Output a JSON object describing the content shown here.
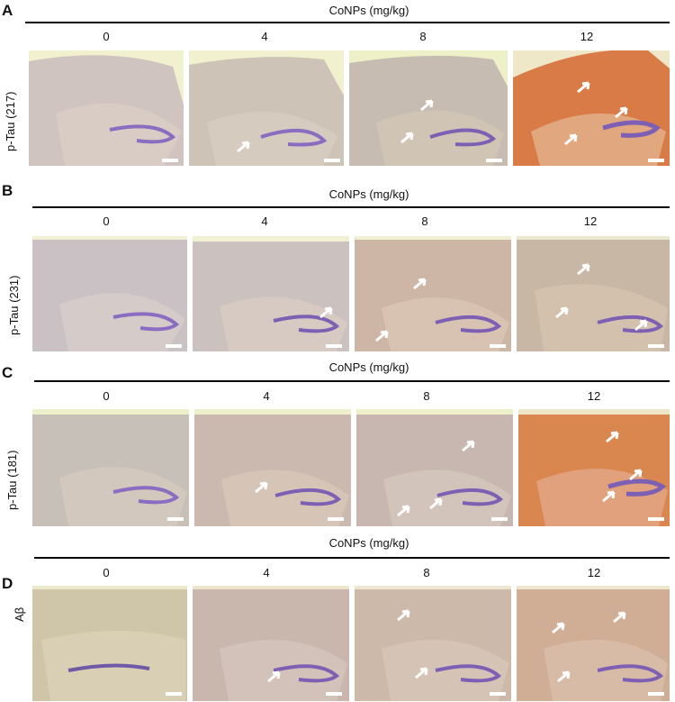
{
  "panels": [
    {
      "letter": "A",
      "header": "CoNPs (mg/kg)",
      "doses": [
        "0",
        "4",
        "8",
        "12"
      ],
      "row_label": "p-Tau (217)"
    },
    {
      "letter": "B",
      "header": "CoNPs (mg/kg)",
      "doses": [
        "0",
        "4",
        "8",
        "12"
      ],
      "row_label": "p-Tau (231)"
    },
    {
      "letter": "C",
      "header": "CoNPs (mg/kg)",
      "doses": [
        "0",
        "4",
        "8",
        "12"
      ],
      "row_label": "p-Tau (181)"
    },
    {
      "letter": "D",
      "header": "CoNPs (mg/kg)",
      "doses": [
        "0",
        "4",
        "8",
        "12"
      ],
      "row_label": "Aβ"
    }
  ],
  "colors": {
    "background_tissue": "#d9c8a6",
    "cortex_light": "#cfc6c0",
    "hippocampus_stain": "#7d5fb4",
    "strong_stain": "#d77a45",
    "slide_background": "#eef0c8"
  }
}
